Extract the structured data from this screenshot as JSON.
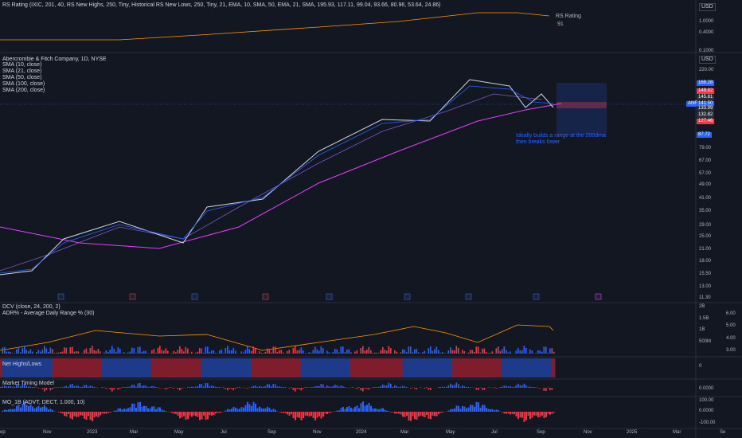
{
  "top_pane": {
    "legend": "RS Rating (IXIC, 201, 40, RS New Highs, 250, Tiny, Historical RS New Lows, 250, Tiny, 21, EMA, 10, SMA, 50, EMA, 21, SMA, 195.93, 117.11, 99.04, 93.66, 80.96, 53.64, 24.86)",
    "currency": "USD",
    "axis": [
      "1.0000",
      "0.4000",
      "0.1000"
    ],
    "series_label": "RS Rating",
    "series_value": "91"
  },
  "main_pane": {
    "title": "Abercrombie & Fitch Company, 1D, NYSE",
    "studies": [
      "SMA (10, close)",
      "SMA (21, close)",
      "SMA (50, close)",
      "SMA (100, close)",
      "SMA (200, close)"
    ],
    "currency": "USD",
    "axis": [
      "220.00",
      "79.00",
      "67.00",
      "57.00",
      "49.00",
      "41.00",
      "35.00",
      "29.00",
      "25.00",
      "21.00",
      "18.00",
      "15.50",
      "13.00",
      "11.30"
    ],
    "price_tags": [
      {
        "label": "169.28",
        "color": "#2962ff"
      },
      {
        "label": "149.82",
        "color": "#f23645"
      },
      {
        "label": "145.81",
        "color": "#2a2e39"
      },
      {
        "label": "141.50",
        "color": "#2962ff"
      },
      {
        "label": "133.99",
        "color": "#2a2e39"
      },
      {
        "label": "132.82",
        "color": "#2a2e39"
      },
      {
        "label": "127.46",
        "color": "#f23645"
      },
      {
        "label": "87.72",
        "color": "#2962ff"
      }
    ],
    "symbol_tag": "ANF",
    "annotation": "Ideally builds a range at the 200dma then breaks lower"
  },
  "volume_pane": {
    "legend_1": "DCV (close, 24, 200, 2)",
    "legend_2": "ADR% - Average Daily Range % (30)",
    "axis_left": [
      "2B",
      "1.5B",
      "1B",
      "500M"
    ],
    "axis_right": [
      "6.00",
      "5.00",
      "4.00",
      "3.00"
    ]
  },
  "net_pane": {
    "legend": "Net Highs/Lows",
    "axis": [
      "0"
    ]
  },
  "timing_pane": {
    "legend": "Market Timing Model",
    "axis": [
      "0.0000"
    ]
  },
  "mo_pane": {
    "legend": "MO_1B (ADVT, DECT, 1.000, 10)",
    "axis": [
      "100.00",
      "0.0000",
      "-100.00"
    ]
  },
  "time_axis": [
    "ep",
    "Nov",
    "2023",
    "Mar",
    "May",
    "Jul",
    "Sep",
    "Nov",
    "2024",
    "Mar",
    "May",
    "Jul",
    "Sep",
    "Nov",
    "2025",
    "Mar",
    "Se"
  ]
}
